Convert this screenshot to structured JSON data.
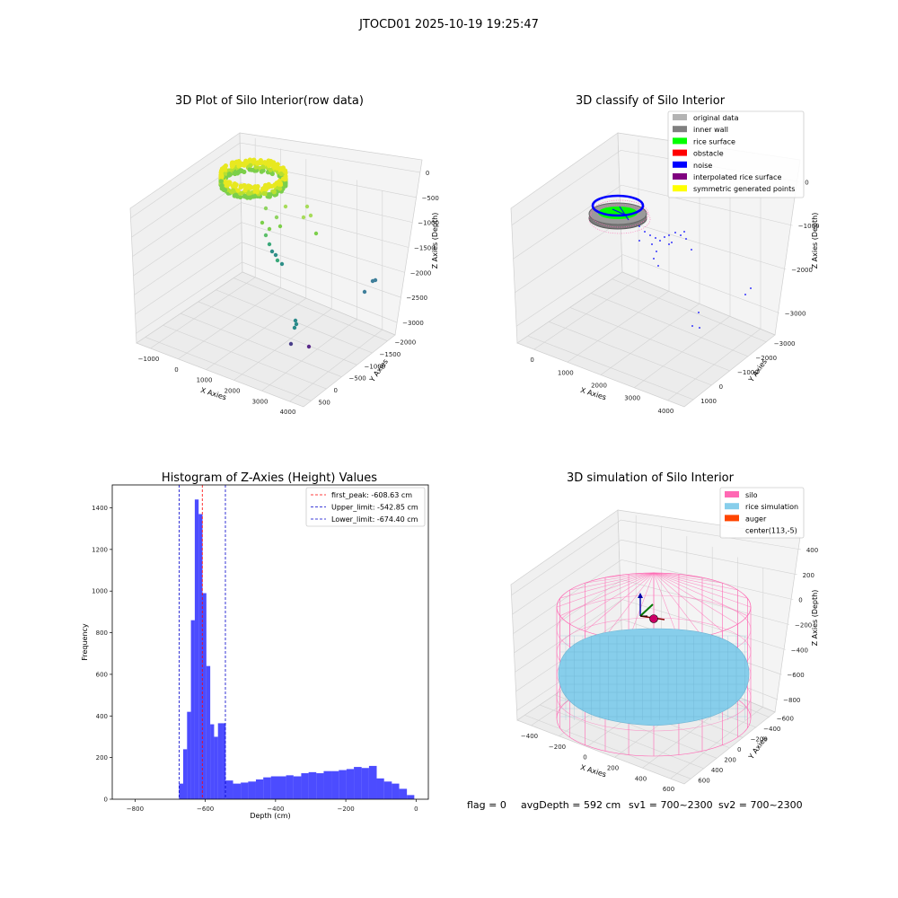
{
  "figure": {
    "suptitle": "JTOCD01 2025-10-19 19:25:47",
    "footer": {
      "flag": "flag = 0",
      "avg": "avgDepth = 592 cm",
      "sv1": "sv1 = 700~2300",
      "sv2": "sv2 = 700~2300"
    }
  },
  "panels": {
    "raw": {
      "title": "3D Plot of Silo Interior(row data)",
      "xlabel": "X Axies",
      "ylabel": "Y Axies",
      "zlabel": "Z Axies (Depth)",
      "xticks": [
        "−1000",
        "0",
        "1000",
        "2000",
        "3000",
        "4000"
      ],
      "yticks": [
        "500",
        "0",
        "−500",
        "−1000",
        "−1500",
        "−2000"
      ],
      "zticks": [
        "0",
        "−500",
        "−1000",
        "−1500",
        "−2000",
        "−2500",
        "−3000"
      ]
    },
    "classify": {
      "title": "3D classify of Silo Interior",
      "xlabel": "X Axies",
      "ylabel": "Y Axies",
      "zlabel": "Z Axies (Depth)",
      "xticks": [
        "0",
        "1000",
        "2000",
        "3000",
        "4000"
      ],
      "yticks": [
        "1000",
        "0",
        "−1000",
        "−2000",
        "−3000"
      ],
      "zticks": [
        "0",
        "−1000",
        "−2000",
        "−3000"
      ],
      "legend": [
        {
          "label": "original data",
          "color": "#b3b3b3"
        },
        {
          "label": "inner wall",
          "color": "#808080"
        },
        {
          "label": "rice surface",
          "color": "#00ff00"
        },
        {
          "label": "obstacle",
          "color": "#ff0000"
        },
        {
          "label": "noise",
          "color": "#0000ff"
        },
        {
          "label": "interpolated rice surface",
          "color": "#800080"
        },
        {
          "label": "symmetric generated points",
          "color": "#ffff00"
        }
      ]
    },
    "sim": {
      "title": "3D simulation of Silo Interior",
      "xlabel": "X Axies",
      "ylabel": "Y Axies",
      "zlabel": "Z Axies (Depth)",
      "xticks": [
        "−400",
        "−200",
        "0",
        "200",
        "400",
        "600"
      ],
      "yticks": [
        "600",
        "400",
        "200",
        "0",
        "−200",
        "−400",
        "−600"
      ],
      "zticks": [
        "400",
        "200",
        "0",
        "−200",
        "−400",
        "−600",
        "−800"
      ],
      "legend": [
        {
          "label": "silo",
          "color": "#ff69b4"
        },
        {
          "label": "rice simulation",
          "color": "#87ceeb"
        },
        {
          "label": "auger",
          "color": "#ff4500"
        },
        {
          "label": "center(113,-5)",
          "color": ""
        }
      ]
    }
  },
  "chart_data": [
    {
      "type": "bar",
      "title": "Histogram of Z-Axies (Height) Values",
      "xlabel": "Depth (cm)",
      "ylabel": "Frequency",
      "xlim": [
        -865,
        35
      ],
      "ylim": [
        0,
        1510
      ],
      "xticks": [
        -800,
        -600,
        -400,
        -200,
        0
      ],
      "yticks": [
        0,
        200,
        400,
        600,
        800,
        1000,
        1200,
        1400
      ],
      "bar_color": "#0000ff",
      "bins": [
        [
          -675,
          -663,
          75
        ],
        [
          -663,
          -652,
          240
        ],
        [
          -652,
          -641,
          420
        ],
        [
          -641,
          -630,
          860
        ],
        [
          -630,
          -619,
          1440
        ],
        [
          -619,
          -608,
          1370
        ],
        [
          -608,
          -597,
          990
        ],
        [
          -597,
          -586,
          640
        ],
        [
          -586,
          -575,
          360
        ],
        [
          -575,
          -564,
          300
        ],
        [
          -564,
          -553,
          365
        ],
        [
          -553,
          -542,
          365
        ],
        [
          -542,
          -521,
          90
        ],
        [
          -521,
          -499,
          75
        ],
        [
          -499,
          -478,
          80
        ],
        [
          -478,
          -456,
          85
        ],
        [
          -456,
          -435,
          95
        ],
        [
          -435,
          -413,
          105
        ],
        [
          -413,
          -392,
          110
        ],
        [
          -392,
          -370,
          110
        ],
        [
          -370,
          -349,
          115
        ],
        [
          -349,
          -327,
          110
        ],
        [
          -327,
          -306,
          125
        ],
        [
          -306,
          -284,
          130
        ],
        [
          -284,
          -263,
          125
        ],
        [
          -263,
          -241,
          135
        ],
        [
          -241,
          -220,
          135
        ],
        [
          -220,
          -198,
          140
        ],
        [
          -198,
          -177,
          145
        ],
        [
          -177,
          -155,
          155
        ],
        [
          -155,
          -134,
          150
        ],
        [
          -134,
          -112,
          160
        ],
        [
          -112,
          -91,
          100
        ],
        [
          -91,
          -69,
          85
        ],
        [
          -69,
          -48,
          75
        ],
        [
          -48,
          -26,
          50
        ],
        [
          -26,
          -5,
          20
        ]
      ],
      "vlines": [
        {
          "label": "first_peak: -608.63 cm",
          "x": -608.63,
          "color": "#ff0000"
        },
        {
          "label": "Upper_limit: -542.85 cm",
          "x": -542.85,
          "color": "#0000cc"
        },
        {
          "label": "Lower_limit: -674.40 cm",
          "x": -674.4,
          "color": "#0000cc"
        }
      ]
    }
  ]
}
